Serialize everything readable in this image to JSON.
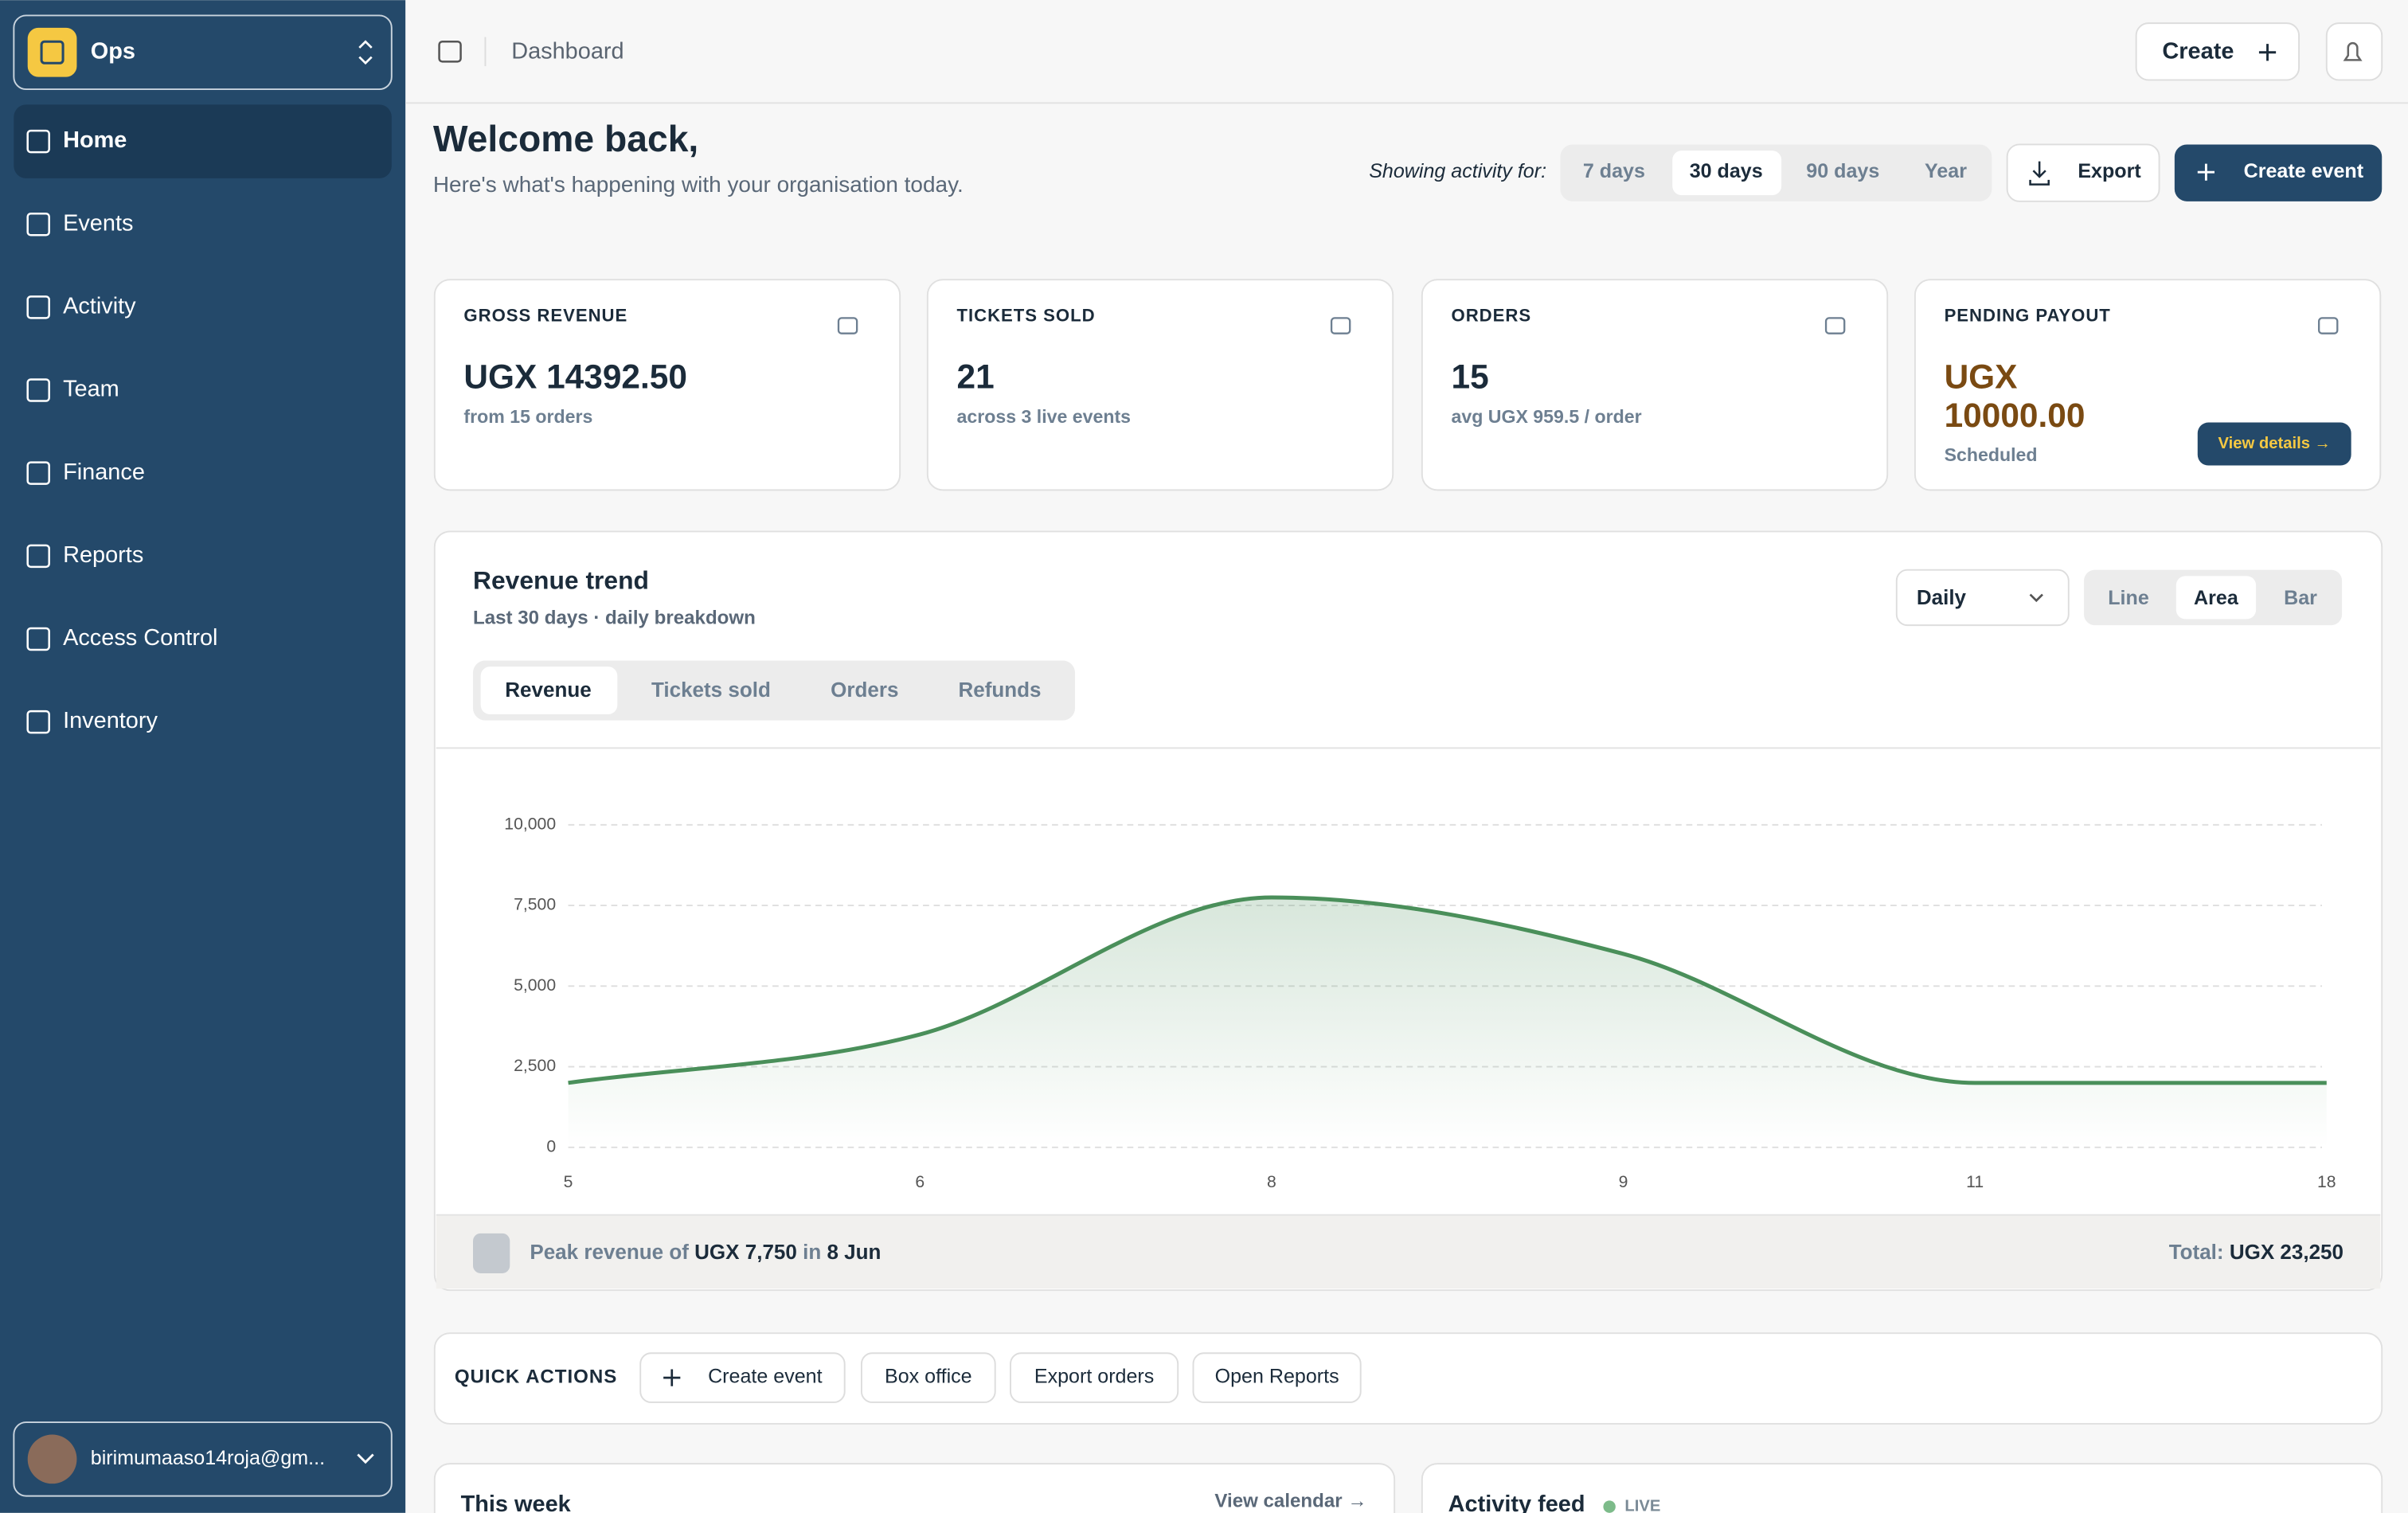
{
  "sidebar": {
    "org": "Ops",
    "nav": [
      "Home",
      "Events",
      "Activity",
      "Team",
      "Finance",
      "Reports",
      "Access Control",
      "Inventory"
    ],
    "user": "birimumaaso14roja@gm..."
  },
  "topbar": {
    "breadcrumb": "Dashboard",
    "create": "Create"
  },
  "welcome": {
    "title": "Welcome back,",
    "subtitle": "Here's what's happening with your organisation today."
  },
  "activity": {
    "label": "Showing activity for:",
    "ranges": [
      "7 days",
      "30 days",
      "90 days",
      "Year"
    ],
    "export": "Export",
    "create_event": "Create event"
  },
  "stats": [
    {
      "label": "GROSS REVENUE",
      "value": "UGX 14392.50",
      "note": "from 15 orders"
    },
    {
      "label": "TICKETS SOLD",
      "value": "21",
      "note": "across 3 live events"
    },
    {
      "label": "ORDERS",
      "value": "15",
      "note": "avg UGX 959.5 / order"
    },
    {
      "label": "PENDING PAYOUT",
      "value_lines": [
        "UGX",
        "10000.00"
      ],
      "note": "Scheduled",
      "button": "View details →"
    }
  ],
  "chart_panel": {
    "title": "Revenue trend",
    "subtitle": "Last 30 days · daily breakdown",
    "granularity": "Daily",
    "modes": [
      "Line",
      "Area",
      "Bar"
    ],
    "metrics": [
      "Revenue",
      "Tickets sold",
      "Orders",
      "Refunds"
    ],
    "footer": {
      "peak": [
        "Peak revenue of",
        "UGX 7,750",
        "in",
        "8 Jun"
      ],
      "total_label": "Total:",
      "total": "UGX 23,250"
    }
  },
  "chart_data": {
    "type": "area",
    "categories": [
      "5",
      "6",
      "8",
      "9",
      "11",
      "18"
    ],
    "values": [
      2000,
      3500,
      7750,
      6000,
      2000,
      2000
    ],
    "color": "#4a8f5a",
    "ylim": [
      0,
      10000
    ],
    "yticks": [
      0,
      {
        "value": 2500,
        "label": "2,500"
      },
      {
        "value": 5000,
        "label": "5,000"
      },
      {
        "value": 7500,
        "label": "7,500"
      },
      {
        "value": 10000,
        "label": "10,000"
      }
    ],
    "grid": true
  },
  "quick_actions": {
    "title": "QUICK ACTIONS",
    "buttons": [
      "Create event",
      "Box office",
      "Export orders",
      "Open Reports"
    ]
  },
  "bottom": {
    "this_week": {
      "title": "This week",
      "link": "View calendar →"
    },
    "activity_feed": {
      "title": "Activity feed",
      "badge": "LIVE"
    }
  }
}
